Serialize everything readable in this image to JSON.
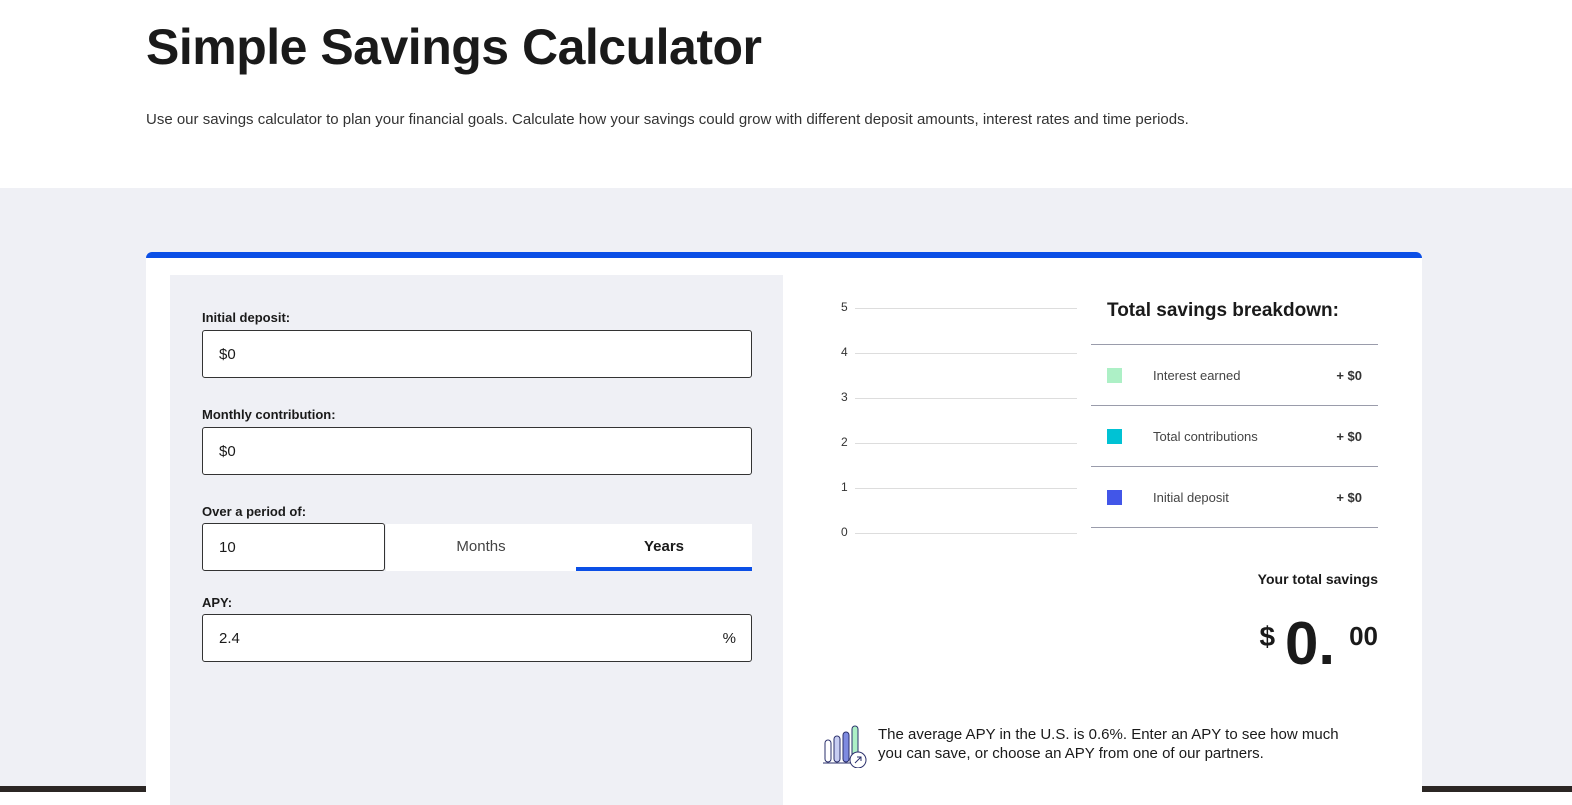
{
  "header": {
    "title": "Simple Savings Calculator",
    "subtitle": "Use our savings calculator to plan your financial goals. Calculate how your savings could grow with different deposit amounts, interest rates and time periods."
  },
  "form": {
    "initial_label": "Initial deposit:",
    "initial_value": "$0",
    "monthly_label": "Monthly contribution:",
    "monthly_value": "$0",
    "period_label": "Over a period of:",
    "period_value": "10",
    "tabs": [
      "Months",
      "Years"
    ],
    "active_tab": "Years",
    "apy_label": "APY:",
    "apy_value": "2.4",
    "apy_unit": "%"
  },
  "chart_data": {
    "type": "bar",
    "y_ticks": [
      "0",
      "1",
      "2",
      "3",
      "4",
      "5"
    ],
    "ylim": [
      0,
      5
    ],
    "series": [],
    "grid": true
  },
  "breakdown": {
    "title": "Total savings breakdown:",
    "items": [
      {
        "label": "Interest earned",
        "value": "+ $0",
        "color": "#adf0c6"
      },
      {
        "label": "Total contributions",
        "value": "+ $0",
        "color": "#00c2d4"
      },
      {
        "label": "Initial deposit",
        "value": "+ $0",
        "color": "#4256e8"
      }
    ],
    "total_label": "Your total savings",
    "currency": "$",
    "whole": "0.",
    "cents": "00"
  },
  "note": {
    "text": "The average APY in the U.S. is 0.6%. Enter an APY to see how much you can save, or choose an APY from one of our partners.",
    "icon": "bar-chart-arrow-icon"
  },
  "colors": {
    "accent": "#0b4fe6",
    "panel": "#eff0f5"
  }
}
